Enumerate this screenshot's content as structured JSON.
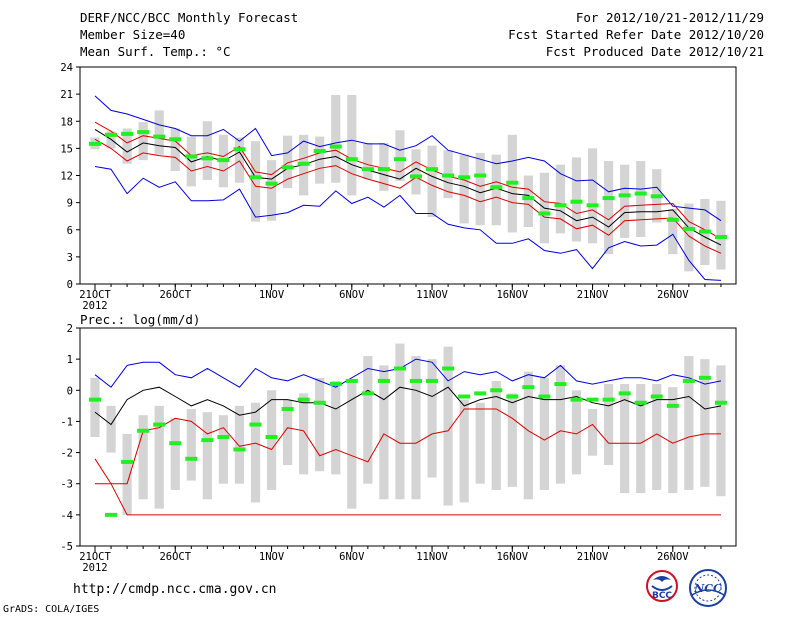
{
  "header": {
    "title": "DERF/NCC/BCC Monthly Forecast",
    "member_size": "Member Size=40",
    "variable": "Mean Surf. Temp.: °C",
    "period": "For 2012/10/21-2012/11/29",
    "refer_date": "Fcst Started Refer Date 2012/10/20",
    "produced_date": "Fcst Produced Date 2012/10/21"
  },
  "footer": {
    "url": "http://cmdp.ncc.cma.gov.cn",
    "credit": "GrADS: COLA/IGES",
    "logo_left_text": "BCC",
    "logo_right_text": "NCC"
  },
  "colors": {
    "bar": "#d4d4d4",
    "ensemble_mean": "#000000",
    "max_line": "#0000e0",
    "min_line": "#dd0000",
    "obs_marker": "#22ee22"
  },
  "chart_data": [
    {
      "type": "line",
      "title": "Mean Surf. Temp.: °C",
      "ylim": [
        0,
        24
      ],
      "yticks": [
        0,
        3,
        6,
        9,
        12,
        15,
        18,
        21,
        24
      ],
      "ytick_labels": [
        "0",
        "3",
        "6",
        "9",
        "12",
        "15",
        "18",
        "21",
        "24"
      ],
      "xticks": [
        {
          "day": 0,
          "label": "21OCT"
        },
        {
          "day": 5,
          "label": "26OCT"
        },
        {
          "day": 11,
          "label": "1NOV"
        },
        {
          "day": 16,
          "label": "6NOV"
        },
        {
          "day": 21,
          "label": "11NOV"
        },
        {
          "day": 26,
          "label": "16NOV"
        },
        {
          "day": 31,
          "label": "21NOV"
        },
        {
          "day": 36,
          "label": "26NOV"
        }
      ],
      "year_label": "2012",
      "x_first_day": 0,
      "n_days": 40,
      "series": [
        {
          "name": "max",
          "values": [
            20.8,
            19.2,
            18.8,
            18.2,
            17.6,
            17.2,
            16.4,
            16.4,
            17.1,
            15.8,
            17.2,
            14.2,
            14.5,
            15.8,
            15.2,
            15.6,
            15.9,
            15.5,
            15.5,
            14.8,
            15.3,
            16.4,
            14.8,
            14.3,
            13.8,
            13.3,
            13.6,
            14.0,
            13.6,
            12.2,
            11.4,
            11.5,
            10.2,
            10.6,
            10.5,
            10.7,
            8.6,
            8.4,
            8.2,
            7.0
          ]
        },
        {
          "name": "ensemble_mean",
          "values": [
            17.1,
            16.0,
            14.6,
            15.6,
            15.3,
            15.1,
            13.5,
            14.1,
            13.6,
            14.6,
            11.8,
            11.6,
            12.8,
            13.2,
            13.8,
            14.1,
            13.2,
            12.6,
            12.1,
            11.6,
            12.8,
            11.9,
            11.2,
            10.8,
            10.1,
            10.6,
            10.0,
            9.8,
            8.4,
            8.1,
            7.0,
            7.4,
            6.3,
            7.9,
            8.0,
            8.0,
            8.2,
            6.2,
            5.2,
            4.3
          ]
        },
        {
          "name": "upper",
          "values": [
            17.9,
            16.9,
            15.6,
            16.4,
            16.1,
            15.8,
            14.2,
            14.5,
            14.1,
            15.2,
            12.4,
            12.1,
            13.4,
            13.9,
            14.5,
            14.8,
            13.8,
            13.2,
            12.8,
            12.4,
            13.5,
            12.6,
            11.9,
            11.5,
            10.8,
            11.3,
            10.7,
            10.5,
            9.1,
            8.9,
            7.8,
            8.2,
            7.1,
            8.6,
            8.7,
            8.8,
            8.9,
            6.9,
            6.0,
            5.0
          ]
        },
        {
          "name": "lower",
          "values": [
            16.0,
            15.0,
            13.6,
            14.5,
            14.2,
            14.0,
            12.5,
            13.0,
            12.5,
            13.6,
            10.8,
            10.6,
            11.6,
            12.2,
            12.8,
            13.1,
            12.2,
            11.6,
            11.1,
            10.6,
            11.8,
            10.9,
            10.2,
            9.8,
            9.1,
            9.6,
            9.0,
            8.8,
            7.4,
            7.2,
            6.1,
            6.5,
            5.4,
            7.0,
            7.1,
            7.2,
            7.3,
            5.3,
            4.2,
            3.4
          ]
        },
        {
          "name": "min",
          "values": [
            13.0,
            12.7,
            10.0,
            11.7,
            10.7,
            11.3,
            9.2,
            9.2,
            9.3,
            10.5,
            7.4,
            7.6,
            7.9,
            8.7,
            8.6,
            10.3,
            8.9,
            9.6,
            8.5,
            9.8,
            7.8,
            7.8,
            6.6,
            6.2,
            6.0,
            4.5,
            4.5,
            5.0,
            3.7,
            3.4,
            3.8,
            1.7,
            4.0,
            4.7,
            4.2,
            4.3,
            5.5,
            2.6,
            0.5,
            0.4
          ]
        },
        {
          "name": "bar_top",
          "values": [
            16.2,
            16.9,
            17.2,
            17.9,
            19.2,
            17.2,
            16.3,
            18.0,
            16.5,
            16.2,
            15.8,
            13.7,
            16.4,
            16.5,
            16.3,
            20.9,
            20.9,
            15.6,
            15.6,
            17.0,
            14.9,
            15.3,
            14.8,
            14.3,
            14.5,
            14.3,
            16.5,
            12.0,
            12.3,
            13.2,
            14.0,
            15.0,
            13.6,
            13.2,
            13.6,
            12.7,
            8.3,
            8.9,
            9.4,
            9.2
          ]
        },
        {
          "name": "bar_bottom",
          "values": [
            14.9,
            15.0,
            13.3,
            13.7,
            14.3,
            12.5,
            10.8,
            11.5,
            10.7,
            11.2,
            6.9,
            7.0,
            10.6,
            9.8,
            11.1,
            11.2,
            9.8,
            11.6,
            10.3,
            11.4,
            9.9,
            7.4,
            9.5,
            6.7,
            6.5,
            6.5,
            5.7,
            6.3,
            4.5,
            5.6,
            4.7,
            4.5,
            3.3,
            5.1,
            5.2,
            6.8,
            3.3,
            1.4,
            2.1,
            1.6
          ]
        },
        {
          "name": "observed",
          "values": [
            15.5,
            16.5,
            16.6,
            16.8,
            16.3,
            16.0,
            14.1,
            13.9,
            13.7,
            14.9,
            11.8,
            11.1,
            12.9,
            13.3,
            14.7,
            15.2,
            13.8,
            12.7,
            12.7,
            13.8,
            11.9,
            12.7,
            12.0,
            11.8,
            12.0,
            10.7,
            11.2,
            9.5,
            7.8,
            8.7,
            9.1,
            8.7,
            9.5,
            9.8,
            10.0,
            9.7,
            7.1,
            6.1,
            5.8,
            5.2
          ]
        }
      ]
    },
    {
      "type": "line",
      "title": "Prec.: log(mm/d)",
      "ylim": [
        -5,
        2
      ],
      "yticks": [
        -5,
        -4,
        -3,
        -2,
        -1,
        0,
        1,
        2
      ],
      "ytick_labels": [
        "-5",
        "-4",
        "-3",
        "-2",
        "-1",
        "0",
        "1",
        "2"
      ],
      "xticks": [
        {
          "day": 0,
          "label": "21OCT"
        },
        {
          "day": 5,
          "label": "26OCT"
        },
        {
          "day": 11,
          "label": "1NOV"
        },
        {
          "day": 16,
          "label": "6NOV"
        },
        {
          "day": 21,
          "label": "11NOV"
        },
        {
          "day": 26,
          "label": "16NOV"
        },
        {
          "day": 31,
          "label": "21NOV"
        },
        {
          "day": 36,
          "label": "26NOV"
        }
      ],
      "year_label": "2012",
      "x_first_day": 0,
      "n_days": 40,
      "series": [
        {
          "name": "max",
          "values": [
            0.5,
            0.1,
            0.8,
            0.9,
            0.9,
            0.5,
            0.4,
            0.7,
            0.4,
            0.1,
            0.7,
            0.4,
            0.3,
            0.5,
            0.3,
            0.1,
            0.4,
            0.7,
            0.6,
            0.7,
            1.0,
            0.9,
            0.3,
            0.6,
            0.5,
            0.6,
            0.3,
            0.5,
            0.4,
            0.8,
            0.3,
            0.2,
            0.3,
            0.4,
            0.4,
            0.3,
            0.5,
            0.4,
            0.2,
            0.3
          ]
        },
        {
          "name": "ensemble_mean",
          "values": [
            -0.7,
            -1.1,
            -0.3,
            0.0,
            0.1,
            -0.2,
            -0.5,
            -0.3,
            -0.5,
            -0.8,
            -0.7,
            -0.3,
            -0.3,
            -0.4,
            -0.4,
            -0.6,
            -0.3,
            0.0,
            -0.3,
            0.1,
            0.0,
            -0.2,
            0.1,
            -0.5,
            -0.3,
            -0.2,
            -0.4,
            -0.2,
            -0.3,
            -0.3,
            -0.2,
            -0.4,
            -0.5,
            -0.3,
            -0.5,
            -0.3,
            -0.3,
            -0.2,
            -0.6,
            -0.5
          ]
        },
        {
          "name": "min",
          "values": [
            -2.2,
            -3.0,
            -4.0,
            -4.0,
            -4.0,
            -4.0,
            -4.0,
            -4.0,
            -4.0,
            -4.0,
            -4.0,
            -4.0,
            -4.0,
            -4.0,
            -4.0,
            -4.0,
            -4.0,
            -4.0,
            -4.0,
            -4.0,
            -4.0,
            -4.0,
            -4.0,
            -4.0,
            -4.0,
            -4.0,
            -4.0,
            -4.0,
            -4.0,
            -4.0,
            -4.0,
            -4.0,
            -4.0,
            -4.0,
            -4.0,
            -4.0,
            -4.0,
            -4.0,
            -4.0,
            -4.0
          ]
        },
        {
          "name": "lower",
          "values": [
            -3.0,
            -3.0,
            -3.0,
            -1.3,
            -1.2,
            -0.9,
            -1.0,
            -1.4,
            -1.2,
            -1.8,
            -1.7,
            -1.9,
            -1.2,
            -1.3,
            -2.1,
            -1.9,
            -2.1,
            -2.3,
            -1.4,
            -1.7,
            -1.7,
            -1.4,
            -1.3,
            -0.6,
            -0.6,
            -0.6,
            -0.9,
            -1.3,
            -1.6,
            -1.3,
            -1.4,
            -1.1,
            -1.7,
            -1.7,
            -1.7,
            -1.4,
            -1.7,
            -1.5,
            -1.4,
            -1.4
          ]
        },
        {
          "name": "bar_top",
          "values": [
            0.4,
            -0.5,
            -1.4,
            -0.8,
            -0.5,
            -0.9,
            -0.6,
            -0.7,
            -0.8,
            -0.5,
            -0.4,
            0.0,
            -0.3,
            -0.1,
            0.4,
            0.3,
            0.3,
            1.1,
            0.8,
            1.5,
            1.1,
            1.0,
            1.4,
            -0.3,
            -0.4,
            0.3,
            -0.1,
            0.6,
            0.4,
            0.8,
            0.0,
            -0.6,
            0.2,
            0.2,
            0.2,
            0.2,
            0.1,
            1.1,
            1.0,
            0.8
          ]
        },
        {
          "name": "bar_bottom",
          "values": [
            -1.5,
            -2.0,
            -4.0,
            -3.5,
            -3.8,
            -3.2,
            -2.9,
            -3.5,
            -3.0,
            -3.0,
            -3.6,
            -3.2,
            -2.4,
            -2.7,
            -2.6,
            -2.7,
            -3.8,
            -3.0,
            -3.5,
            -3.5,
            -3.5,
            -2.8,
            -3.7,
            -3.6,
            -3.0,
            -3.2,
            -3.1,
            -3.5,
            -3.2,
            -3.0,
            -2.7,
            -2.1,
            -2.4,
            -3.3,
            -3.3,
            -3.2,
            -3.3,
            -3.2,
            -3.1,
            -3.4
          ]
        },
        {
          "name": "observed",
          "values": [
            -0.3,
            -4.0,
            -2.3,
            -1.3,
            -1.1,
            -1.7,
            -2.2,
            -1.6,
            -1.5,
            -1.9,
            -1.1,
            -1.5,
            -0.6,
            -0.3,
            -0.4,
            0.2,
            0.3,
            -0.1,
            0.3,
            0.7,
            0.3,
            0.3,
            0.7,
            -0.2,
            -0.1,
            0.0,
            -0.2,
            0.1,
            -0.2,
            0.2,
            -0.3,
            -0.3,
            -0.3,
            -0.1,
            -0.4,
            -0.2,
            -0.5,
            0.3,
            0.4,
            -0.4
          ]
        }
      ]
    }
  ]
}
